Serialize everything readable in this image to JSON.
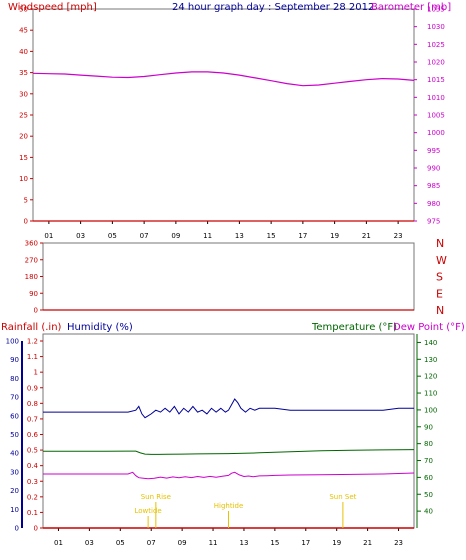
{
  "chart_data": [
    {
      "type": "line",
      "title": "24 hour graph day : September 28 2012",
      "left_axis_label": "Windspeed [mph]",
      "right_axis_label": "Barometer [mb]",
      "ylim_left": [
        0,
        50
      ],
      "ylim_right": [
        975,
        1035
      ],
      "y_ticks_left": [
        "0",
        "5",
        "10",
        "15",
        "20",
        "25",
        "30",
        "35",
        "40",
        "45",
        "50"
      ],
      "y_ticks_right": [
        "975",
        "980",
        "985",
        "990",
        "995",
        "1000",
        "1005",
        "1010",
        "1015",
        "1020",
        "1025",
        "1030",
        "1035"
      ],
      "x_ticks": [
        "01",
        "03",
        "05",
        "07",
        "09",
        "11",
        "13",
        "15",
        "17",
        "19",
        "21",
        "23"
      ],
      "colors": {
        "windspeed": "#cc0000",
        "barometer": "#cc00cc"
      },
      "series": [
        {
          "name": "Barometer [mb]",
          "axis": "right",
          "x": [
            0,
            1,
            2,
            3,
            4,
            5,
            6,
            7,
            8,
            9,
            10,
            11,
            12,
            13,
            14,
            15,
            16,
            17,
            18,
            19,
            20,
            21,
            22,
            23,
            24
          ],
          "values": [
            1016.8,
            1016.7,
            1016.6,
            1016.3,
            1016.0,
            1015.7,
            1015.6,
            1015.9,
            1016.4,
            1016.9,
            1017.2,
            1017.2,
            1016.9,
            1016.3,
            1015.5,
            1014.7,
            1013.9,
            1013.3,
            1013.5,
            1014.0,
            1014.5,
            1015.0,
            1015.3,
            1015.2,
            1014.8
          ]
        },
        {
          "name": "Windspeed [mph]",
          "axis": "left",
          "x": [
            0,
            24
          ],
          "values": [
            0,
            0
          ]
        }
      ]
    },
    {
      "type": "line",
      "title": "",
      "y_ticks_left": [
        "0",
        "90",
        "180",
        "270",
        "360"
      ],
      "ylim_left": [
        0,
        360
      ],
      "direction_labels": [
        "N",
        "W",
        "S",
        "E",
        "N"
      ],
      "color": "#cc0000",
      "series": [
        {
          "name": "",
          "x": [
            0,
            24
          ],
          "values": [
            0,
            0
          ]
        }
      ]
    },
    {
      "type": "line",
      "labels": {
        "rainfall": "Rainfall (.in)",
        "humidity": "Humidity (%)",
        "temperature": "Temperature (°F)",
        "dewpoint": "Dew Point (°F)"
      },
      "y_ticks_humidity": [
        "0",
        "10",
        "20",
        "30",
        "40",
        "50",
        "60",
        "70",
        "80",
        "90",
        "100"
      ],
      "y_ticks_rainfall": [
        "0",
        "0.1",
        "0.2",
        "0.3",
        "0.4",
        "0.5",
        "0.6",
        "0.7",
        "0.8",
        "0.9",
        "1",
        "1.1",
        "1.2"
      ],
      "y_ticks_temperature": [
        "40",
        "50",
        "60",
        "70",
        "80",
        "90",
        "100",
        "110",
        "120",
        "130",
        "140"
      ],
      "ylim_humidity": [
        0,
        100
      ],
      "ylim_temperature": [
        30,
        145
      ],
      "colors": {
        "humidity": "#000099",
        "temperature": "#006600",
        "dewpoint": "#cc00cc",
        "rainfall": "#cc0000",
        "humidity_axis": "#000099",
        "rainfall_axis": "#cc0000",
        "temp_axis": "#006600",
        "annotations": "#e6c200"
      },
      "annotations": [
        {
          "label": "Lowtide",
          "x": 6.8
        },
        {
          "label": "Sun Rise",
          "x": 7.3
        },
        {
          "label": "Hightide",
          "x": 12.0
        },
        {
          "label": "Sun Set",
          "x": 19.4
        }
      ],
      "series": [
        {
          "name": "Humidity (%)",
          "axis": "humidity",
          "x": [
            0,
            2,
            4,
            5.5,
            6.0,
            6.2,
            6.4,
            6.6,
            6.8,
            7.0,
            7.3,
            7.6,
            7.9,
            8.2,
            8.5,
            8.8,
            9.1,
            9.4,
            9.7,
            10.0,
            10.3,
            10.6,
            10.9,
            11.2,
            11.5,
            11.8,
            12.0,
            12.2,
            12.4,
            12.6,
            12.8,
            13.1,
            13.4,
            13.7,
            14.0,
            14.5,
            15,
            16,
            17,
            18,
            20,
            22,
            23,
            24
          ],
          "values": [
            62,
            62,
            62,
            62,
            63,
            65,
            61,
            59,
            60,
            61,
            63,
            62,
            64,
            62,
            65,
            61,
            64,
            62,
            65,
            62,
            63,
            61,
            64,
            62,
            64,
            62,
            63,
            66,
            69,
            67,
            64,
            62,
            64,
            63,
            64,
            64,
            64,
            63,
            63,
            63,
            63,
            63,
            64,
            64
          ]
        },
        {
          "name": "Temperature (°F)",
          "axis": "temperature",
          "x": [
            0,
            2,
            4,
            5.5,
            6.0,
            6.3,
            6.6,
            7.0,
            7.5,
            8.0,
            9.0,
            10.0,
            11.0,
            12.0,
            13.0,
            14.0,
            15,
            16,
            17,
            18,
            20,
            22,
            24
          ],
          "values": [
            75.5,
            75.5,
            75.5,
            75.6,
            75.6,
            74.5,
            73.8,
            73.6,
            73.6,
            73.7,
            73.8,
            73.9,
            74.0,
            74.1,
            74.3,
            74.6,
            74.9,
            75.2,
            75.5,
            75.8,
            76.1,
            76.3,
            76.5
          ]
        },
        {
          "name": "Dew Point (°F)",
          "axis": "temperature",
          "x": [
            0,
            2,
            4,
            5.5,
            5.8,
            6.0,
            6.2,
            6.5,
            6.8,
            7.2,
            7.6,
            8.0,
            8.4,
            8.8,
            9.2,
            9.6,
            10.0,
            10.4,
            10.8,
            11.2,
            11.6,
            12.0,
            12.2,
            12.4,
            12.7,
            13.0,
            13.3,
            13.6,
            14.0,
            14.5,
            15,
            16,
            18,
            20,
            22,
            24
          ],
          "values": [
            62.0,
            62.0,
            62.0,
            62.0,
            63.0,
            61.0,
            59.8,
            59.5,
            59.2,
            59.5,
            60.2,
            59.6,
            60.3,
            59.8,
            60.4,
            59.9,
            60.5,
            60.0,
            60.6,
            60.1,
            60.7,
            61.2,
            62.5,
            63.0,
            61.5,
            60.5,
            60.8,
            60.4,
            60.9,
            61.0,
            61.2,
            61.4,
            61.6,
            61.8,
            62.0,
            62.6
          ]
        },
        {
          "name": "Rainfall (.in)",
          "axis": "rainfall",
          "x": [
            0,
            24
          ],
          "values": [
            0,
            0
          ]
        }
      ]
    }
  ]
}
